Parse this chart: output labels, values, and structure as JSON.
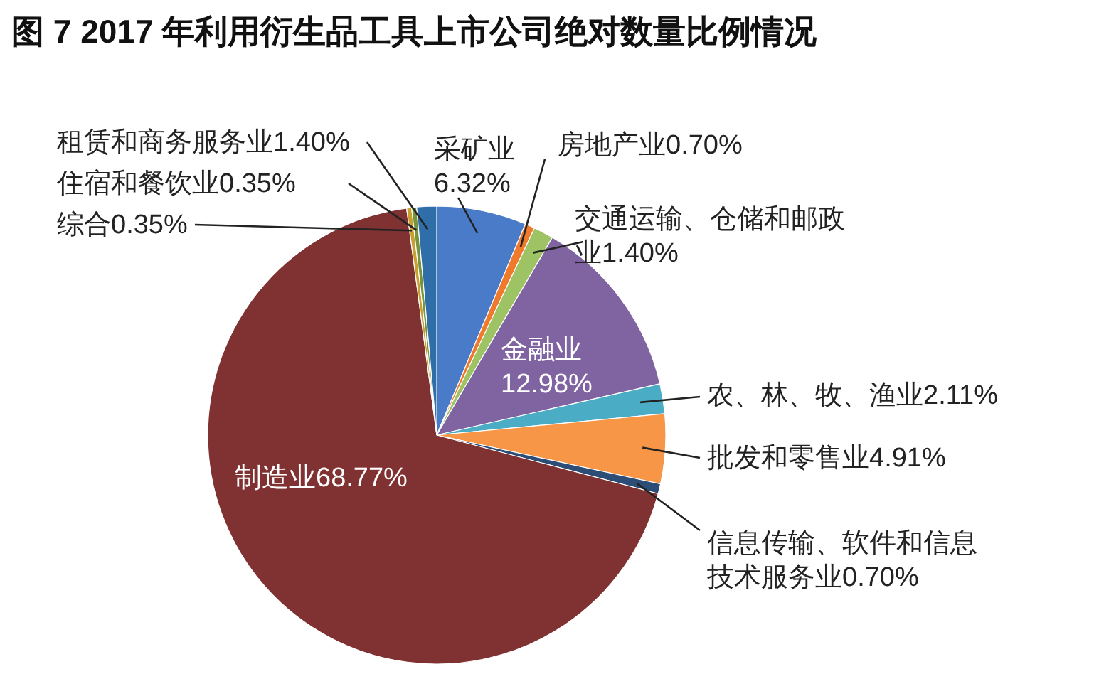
{
  "chart_data": {
    "type": "pie",
    "title": "图 7 2017 年利用衍生品工具上市公司绝对数量比例情况",
    "categories": [
      "采矿业",
      "房地产业",
      "交通运输、仓储和邮政业",
      "金融业",
      "农、林、牧、渔业",
      "批发和零售业",
      "信息传输、软件和信息技术服务业",
      "制造业",
      "综合",
      "住宿和餐饮业",
      "租赁和商务服务业"
    ],
    "values": [
      6.32,
      0.7,
      1.4,
      12.98,
      2.11,
      4.91,
      0.7,
      68.77,
      0.35,
      0.35,
      1.4
    ],
    "value_labels": [
      "6.32%",
      "0.70%",
      "1.40%",
      "12.98%",
      "2.11%",
      "4.91%",
      "0.70%",
      "68.77%",
      "0.35%",
      "0.35%",
      "1.40%"
    ],
    "colors": [
      "#4a7bc8",
      "#f07a2c",
      "#9dc365",
      "#8064a2",
      "#4bacc6",
      "#f79646",
      "#2c4d75",
      "#803232",
      "#c8a030",
      "#77933c",
      "#2f6ea8"
    ]
  }
}
